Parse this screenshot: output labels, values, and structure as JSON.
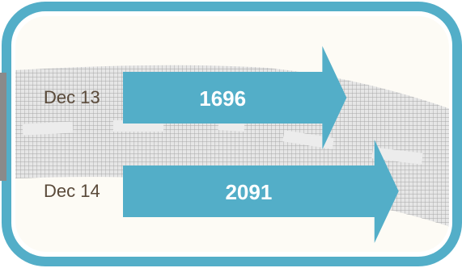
{
  "colors": {
    "frame": "#53aec8",
    "arrow": "#53aec8",
    "road": "#b4b4b4",
    "background": "#fdfbf5",
    "period_label": "#5a4a3a",
    "value_label": "#ffffff"
  },
  "chart_data": {
    "type": "bar",
    "orientation": "horizontal",
    "categories": [
      "Dec 13",
      "Dec 14"
    ],
    "values": [
      1696,
      2091
    ],
    "value_labels": [
      "1696",
      "2091"
    ],
    "title": "",
    "xlabel": "",
    "ylabel": "",
    "xlim": [
      0,
      2160
    ],
    "grid": false,
    "legend": "none"
  }
}
